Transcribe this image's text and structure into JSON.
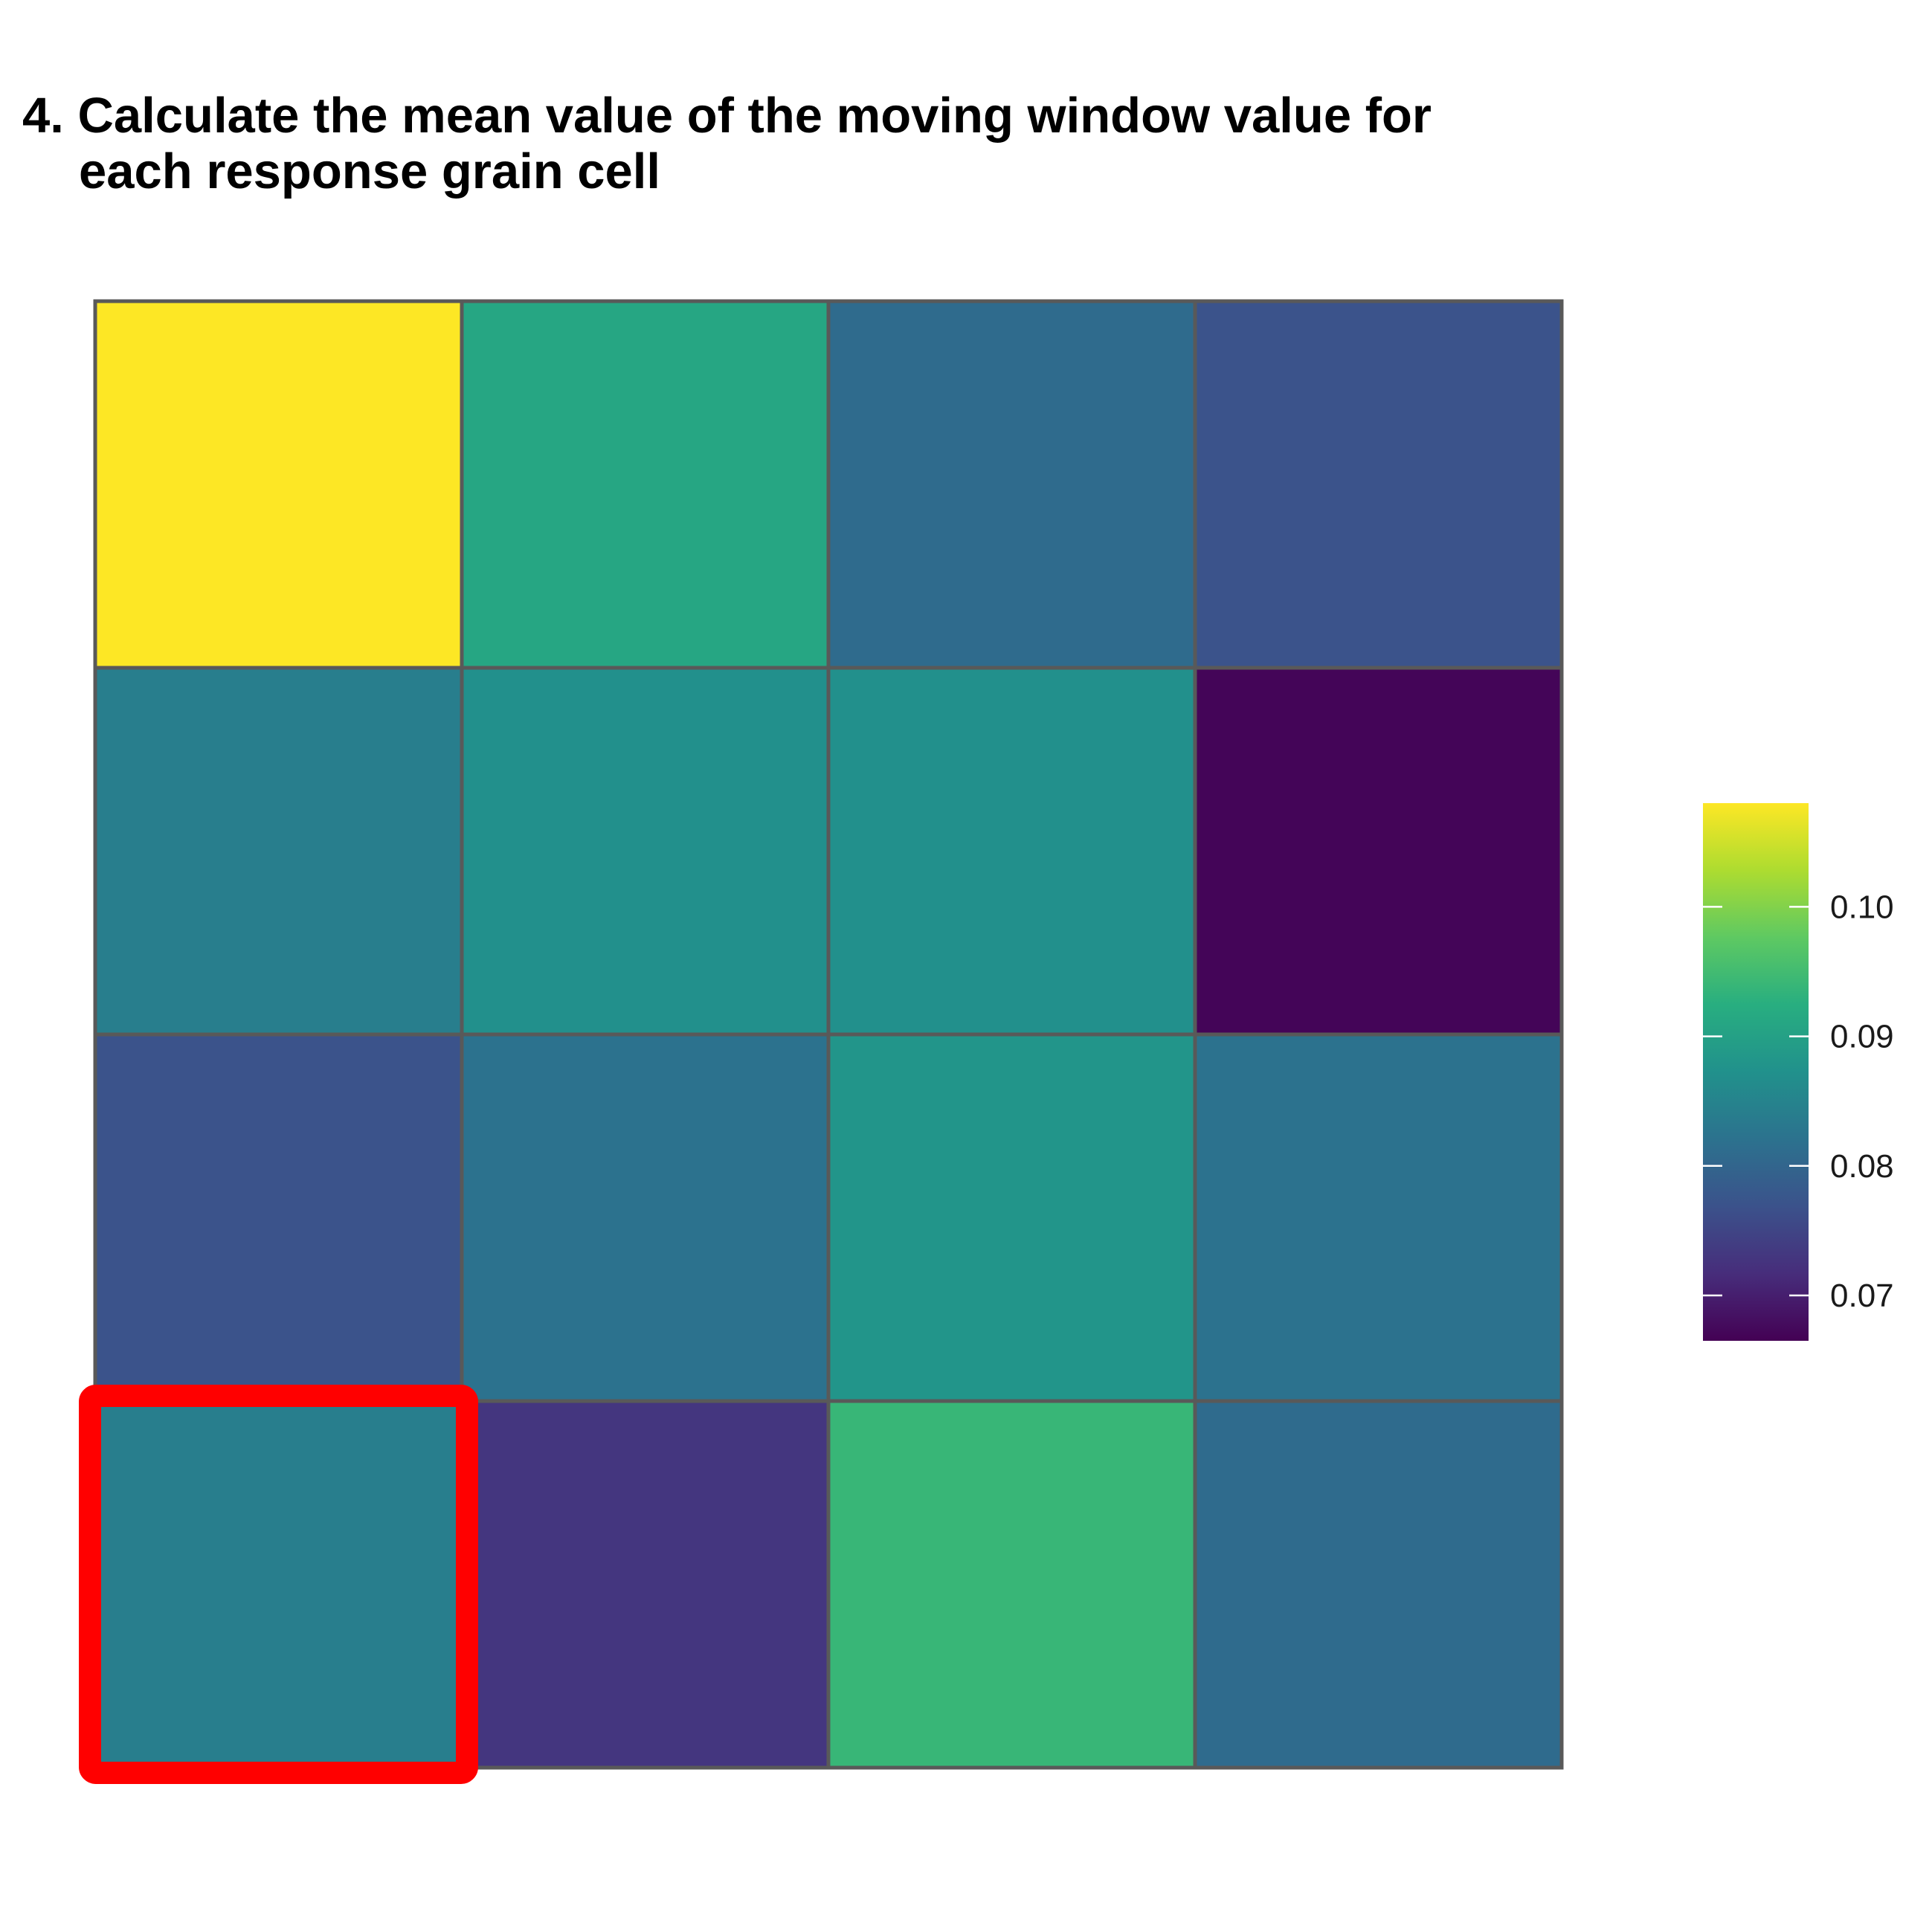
{
  "title": {
    "line1": "4. Calculate the mean value of the moving window value for",
    "line2": "each response grain cell"
  },
  "chart_data": {
    "type": "heatmap",
    "title": "4. Calculate the mean value of the moving window value for each response grain cell",
    "xlabel": "",
    "ylabel": "",
    "rows": 4,
    "cols": 4,
    "values": [
      [
        0.108,
        0.091,
        0.081,
        0.077
      ],
      [
        0.084,
        0.087,
        0.087,
        0.067
      ],
      [
        0.077,
        0.082,
        0.088,
        0.082
      ],
      [
        0.084,
        0.073,
        0.094,
        0.081
      ]
    ],
    "highlighted_cell": {
      "row": 4,
      "col": 1,
      "color": "#ff0000"
    },
    "cell_border_color": "#595959",
    "colorbar": {
      "palette": "viridis",
      "min": 0.0665,
      "max": 0.108,
      "ticks": [
        0.07,
        0.08,
        0.09,
        0.1
      ],
      "tick_labels": [
        "0.07",
        "0.08",
        "0.09",
        "0.10"
      ]
    },
    "grid": false,
    "legend_position": "right"
  }
}
